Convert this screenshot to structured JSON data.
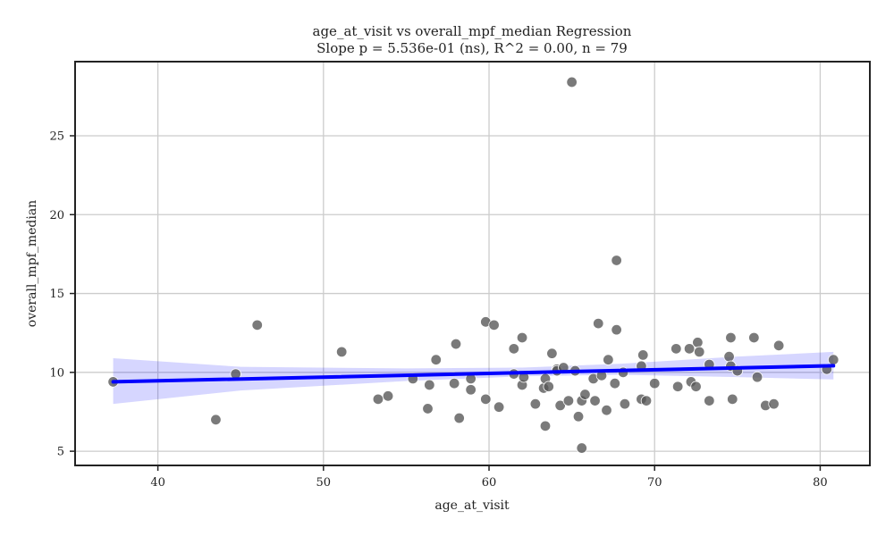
{
  "chart_data": {
    "type": "scatter",
    "title": "age_at_visit vs overall_mpf_median Regression",
    "subtitle": "Slope p = 5.536e-01 (ns), R^2 = 0.00, n = 79",
    "xlabel": "age_at_visit",
    "ylabel": "overall_mpf_median",
    "xlim": [
      35,
      83
    ],
    "ylim": [
      4.1,
      29.7
    ],
    "xticks": [
      40,
      50,
      60,
      70,
      80
    ],
    "yticks": [
      5,
      10,
      15,
      20,
      25
    ],
    "grid": true,
    "point_color": "#555555",
    "line_color": "#0000ff",
    "band_color": "#0000ff",
    "points": [
      {
        "x": 37.3,
        "y": 9.4
      },
      {
        "x": 43.5,
        "y": 7.0
      },
      {
        "x": 44.7,
        "y": 9.9
      },
      {
        "x": 46.0,
        "y": 13.0
      },
      {
        "x": 51.1,
        "y": 11.3
      },
      {
        "x": 53.3,
        "y": 8.3
      },
      {
        "x": 53.9,
        "y": 8.5
      },
      {
        "x": 55.4,
        "y": 9.6
      },
      {
        "x": 56.3,
        "y": 7.7
      },
      {
        "x": 56.4,
        "y": 9.2
      },
      {
        "x": 56.8,
        "y": 10.8
      },
      {
        "x": 57.9,
        "y": 9.3
      },
      {
        "x": 58.0,
        "y": 11.8
      },
      {
        "x": 58.2,
        "y": 7.1
      },
      {
        "x": 58.9,
        "y": 8.9
      },
      {
        "x": 58.9,
        "y": 9.6
      },
      {
        "x": 59.8,
        "y": 8.3
      },
      {
        "x": 59.8,
        "y": 13.2
      },
      {
        "x": 60.3,
        "y": 13.0
      },
      {
        "x": 60.6,
        "y": 7.8
      },
      {
        "x": 61.5,
        "y": 11.5
      },
      {
        "x": 61.5,
        "y": 9.9
      },
      {
        "x": 62.0,
        "y": 9.2
      },
      {
        "x": 62.0,
        "y": 12.2
      },
      {
        "x": 62.1,
        "y": 9.7
      },
      {
        "x": 62.8,
        "y": 8.0
      },
      {
        "x": 63.3,
        "y": 9.0
      },
      {
        "x": 63.4,
        "y": 6.6
      },
      {
        "x": 63.4,
        "y": 9.6
      },
      {
        "x": 63.6,
        "y": 9.1
      },
      {
        "x": 63.8,
        "y": 11.2
      },
      {
        "x": 64.1,
        "y": 10.2
      },
      {
        "x": 64.1,
        "y": 10.1
      },
      {
        "x": 64.3,
        "y": 7.9
      },
      {
        "x": 64.5,
        "y": 10.3
      },
      {
        "x": 64.8,
        "y": 8.2
      },
      {
        "x": 65.0,
        "y": 28.4
      },
      {
        "x": 65.2,
        "y": 10.1
      },
      {
        "x": 65.4,
        "y": 7.2
      },
      {
        "x": 65.6,
        "y": 5.2
      },
      {
        "x": 65.6,
        "y": 8.2
      },
      {
        "x": 65.8,
        "y": 8.6
      },
      {
        "x": 66.3,
        "y": 9.6
      },
      {
        "x": 66.4,
        "y": 8.2
      },
      {
        "x": 66.6,
        "y": 13.1
      },
      {
        "x": 66.8,
        "y": 9.8
      },
      {
        "x": 67.1,
        "y": 7.6
      },
      {
        "x": 67.2,
        "y": 10.8
      },
      {
        "x": 67.6,
        "y": 9.3
      },
      {
        "x": 67.7,
        "y": 17.1
      },
      {
        "x": 67.7,
        "y": 12.7
      },
      {
        "x": 68.1,
        "y": 10.0
      },
      {
        "x": 68.2,
        "y": 8.0
      },
      {
        "x": 69.2,
        "y": 10.4
      },
      {
        "x": 69.2,
        "y": 8.3
      },
      {
        "x": 69.3,
        "y": 11.1
      },
      {
        "x": 69.5,
        "y": 8.2
      },
      {
        "x": 70.0,
        "y": 9.3
      },
      {
        "x": 71.3,
        "y": 11.5
      },
      {
        "x": 71.4,
        "y": 9.1
      },
      {
        "x": 72.1,
        "y": 11.5
      },
      {
        "x": 72.2,
        "y": 9.4
      },
      {
        "x": 72.5,
        "y": 9.1
      },
      {
        "x": 72.6,
        "y": 11.9
      },
      {
        "x": 72.7,
        "y": 11.3
      },
      {
        "x": 73.3,
        "y": 8.2
      },
      {
        "x": 73.3,
        "y": 10.5
      },
      {
        "x": 74.5,
        "y": 11.0
      },
      {
        "x": 74.6,
        "y": 12.2
      },
      {
        "x": 74.6,
        "y": 10.4
      },
      {
        "x": 74.7,
        "y": 8.3
      },
      {
        "x": 75.0,
        "y": 10.1
      },
      {
        "x": 76.0,
        "y": 12.2
      },
      {
        "x": 76.2,
        "y": 9.7
      },
      {
        "x": 76.7,
        "y": 7.9
      },
      {
        "x": 77.2,
        "y": 8.0
      },
      {
        "x": 77.5,
        "y": 11.7
      },
      {
        "x": 80.4,
        "y": 10.2
      },
      {
        "x": 80.8,
        "y": 10.8
      }
    ],
    "regression_line": [
      {
        "x": 37.3,
        "y": 9.4
      },
      {
        "x": 80.8,
        "y": 10.42
      }
    ],
    "confidence_band": [
      {
        "x": 37.3,
        "lower": 8.0,
        "upper": 10.9
      },
      {
        "x": 45.0,
        "lower": 8.85,
        "upper": 10.35
      },
      {
        "x": 55.0,
        "lower": 9.45,
        "upper": 10.25
      },
      {
        "x": 62.0,
        "lower": 9.75,
        "upper": 10.3
      },
      {
        "x": 68.0,
        "lower": 9.85,
        "upper": 10.55
      },
      {
        "x": 75.0,
        "lower": 9.7,
        "upper": 11.0
      },
      {
        "x": 80.8,
        "lower": 9.55,
        "upper": 11.3
      }
    ]
  }
}
